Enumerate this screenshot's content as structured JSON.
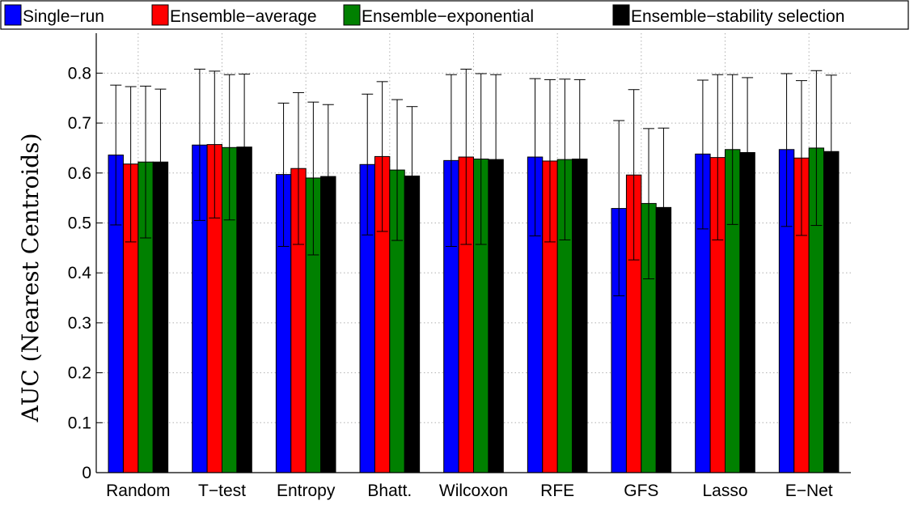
{
  "chart_data": {
    "type": "bar",
    "title": "",
    "xlabel": "",
    "ylabel": "AUC (Nearest Centroids)",
    "ylim": [
      0,
      0.88
    ],
    "yticks": [
      0,
      0.1,
      0.2,
      0.3,
      0.4,
      0.5,
      0.6,
      0.7,
      0.8
    ],
    "ytick_labels": [
      "0",
      "0.1",
      "0.2",
      "0.3",
      "0.4",
      "0.5",
      "0.6",
      "0.7",
      "0.8"
    ],
    "grid": true,
    "legend_position": "top",
    "categories": [
      "Random",
      "T−test",
      "Entropy",
      "Bhatt.",
      "Wilcoxon",
      "RFE",
      "GFS",
      "Lasso",
      "E−Net"
    ],
    "series": [
      {
        "name": "Single−run",
        "color": "#0000ff",
        "values": [
          0.636,
          0.656,
          0.597,
          0.617,
          0.625,
          0.632,
          0.529,
          0.638,
          0.647
        ],
        "err_low": [
          0.496,
          0.505,
          0.453,
          0.476,
          0.453,
          0.474,
          0.354,
          0.488,
          0.493
        ],
        "err_high": [
          0.776,
          0.808,
          0.74,
          0.758,
          0.797,
          0.789,
          0.705,
          0.786,
          0.799
        ]
      },
      {
        "name": "Ensemble−average",
        "color": "#ff0000",
        "values": [
          0.618,
          0.657,
          0.609,
          0.633,
          0.632,
          0.624,
          0.596,
          0.631,
          0.63
        ],
        "err_low": [
          0.462,
          0.51,
          0.457,
          0.483,
          0.457,
          0.462,
          0.426,
          0.466,
          0.475
        ],
        "err_high": [
          0.773,
          0.804,
          0.761,
          0.783,
          0.808,
          0.787,
          0.767,
          0.797,
          0.785
        ]
      },
      {
        "name": "Ensemble−exponential",
        "color": "#008000",
        "values": [
          0.622,
          0.651,
          0.59,
          0.606,
          0.628,
          0.627,
          0.539,
          0.647,
          0.65
        ],
        "err_low": [
          0.47,
          0.506,
          0.436,
          0.465,
          0.457,
          0.466,
          0.388,
          0.497,
          0.495
        ],
        "err_high": [
          0.774,
          0.797,
          0.742,
          0.747,
          0.799,
          0.788,
          0.689,
          0.797,
          0.805
        ]
      },
      {
        "name": "Ensemble−stability selection",
        "color": "#000000",
        "values": [
          0.622,
          0.652,
          0.593,
          0.594,
          0.627,
          0.628,
          0.531,
          0.641,
          0.643
        ],
        "err_low": [
          0.476,
          0.506,
          0.449,
          0.455,
          0.456,
          0.469,
          0.373,
          0.491,
          0.49
        ],
        "err_high": [
          0.768,
          0.798,
          0.737,
          0.733,
          0.797,
          0.787,
          0.69,
          0.791,
          0.796
        ]
      }
    ]
  }
}
